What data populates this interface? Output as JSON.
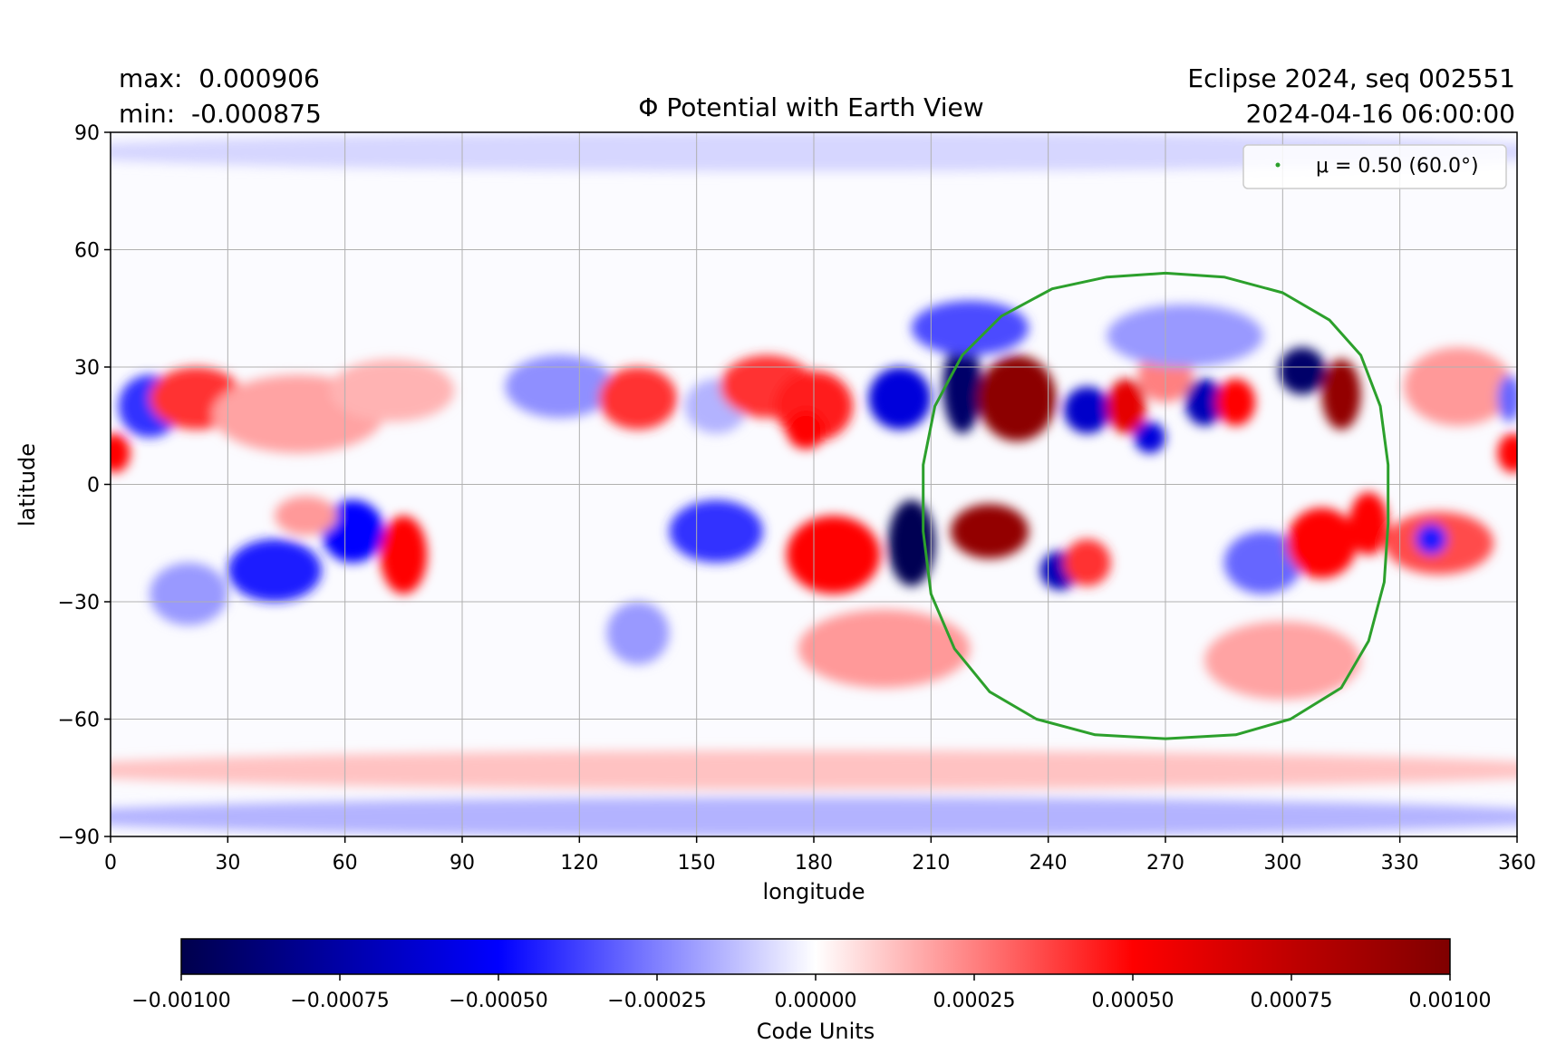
{
  "header": {
    "max_label": "max:",
    "max_value": "0.000906",
    "min_label": "min:",
    "min_value": "-0.000875",
    "source": "Eclipse 2024, seq 002551",
    "timestamp": "2024-04-16 06:00:00"
  },
  "chart_data": {
    "type": "heatmap",
    "title": "Φ Potential with Earth View",
    "xlabel": "longitude",
    "ylabel": "latitude",
    "xlim": [
      0,
      360
    ],
    "ylim": [
      -90,
      90
    ],
    "xticks": [
      0,
      30,
      60,
      90,
      120,
      150,
      180,
      210,
      240,
      270,
      300,
      330,
      360
    ],
    "yticks": [
      -90,
      -60,
      -30,
      0,
      30,
      60,
      90
    ],
    "ytick_labels": [
      "−90",
      "−60",
      "−30",
      "0",
      "30",
      "60",
      "90"
    ],
    "grid": true,
    "colormap": "seismic",
    "colormap_colors": [
      "#00004c",
      "#0000ff",
      "#ffffff",
      "#ff0000",
      "#7f0000"
    ],
    "colorbar": {
      "label": "Code Units",
      "range": [
        -0.001,
        0.001
      ],
      "ticks": [
        -0.001,
        -0.00075,
        -0.0005,
        -0.00025,
        0.0,
        0.00025,
        0.0005,
        0.00075,
        0.001
      ],
      "tick_labels": [
        "−0.00100",
        "−0.00075",
        "−0.00050",
        "−0.00025",
        "0.00000",
        "0.00025",
        "0.00050",
        "0.00075",
        "0.00100"
      ]
    },
    "legend": {
      "label": "μ = 0.50 (60.0°)",
      "position": "top-right",
      "color": "#2ca02c"
    },
    "disk_contour": {
      "name": "μ = 0.50 (60.0°)",
      "color": "#2ca02c",
      "points": [
        [
          270,
          54
        ],
        [
          285,
          53
        ],
        [
          300,
          49
        ],
        [
          312,
          42
        ],
        [
          320,
          33
        ],
        [
          325,
          20
        ],
        [
          327,
          5
        ],
        [
          327,
          -10
        ],
        [
          326,
          -25
        ],
        [
          322,
          -40
        ],
        [
          315,
          -52
        ],
        [
          302,
          -60
        ],
        [
          288,
          -64
        ],
        [
          270,
          -65
        ],
        [
          252,
          -64
        ],
        [
          237,
          -60
        ],
        [
          225,
          -53
        ],
        [
          216,
          -42
        ],
        [
          210,
          -28
        ],
        [
          208,
          -12
        ],
        [
          208,
          5
        ],
        [
          211,
          20
        ],
        [
          218,
          33
        ],
        [
          228,
          43
        ],
        [
          241,
          50
        ],
        [
          255,
          53
        ],
        [
          270,
          54
        ]
      ]
    },
    "features": [
      {
        "lon": 10,
        "lat": 20,
        "value": -0.0004,
        "rlon": 8,
        "rlat": 8
      },
      {
        "lon": 1,
        "lat": 8,
        "value": 0.0005,
        "rlon": 4,
        "rlat": 5
      },
      {
        "lon": 22,
        "lat": 22,
        "value": 0.0004,
        "rlon": 12,
        "rlat": 8
      },
      {
        "lon": 48,
        "lat": 18,
        "value": 0.00018,
        "rlon": 22,
        "rlat": 10
      },
      {
        "lon": 72,
        "lat": 24,
        "value": 0.00015,
        "rlon": 16,
        "rlat": 8
      },
      {
        "lon": 115,
        "lat": 25,
        "value": -0.00022,
        "rlon": 14,
        "rlat": 8
      },
      {
        "lon": 135,
        "lat": 22,
        "value": 0.0004,
        "rlon": 10,
        "rlat": 8
      },
      {
        "lon": 155,
        "lat": 20,
        "value": -0.00015,
        "rlon": 8,
        "rlat": 7
      },
      {
        "lon": 168,
        "lat": 25,
        "value": 0.0004,
        "rlon": 12,
        "rlat": 8
      },
      {
        "lon": 180,
        "lat": 20,
        "value": 0.00045,
        "rlon": 10,
        "rlat": 9
      },
      {
        "lon": 178,
        "lat": 14,
        "value": 0.0005,
        "rlon": 5,
        "rlat": 5
      },
      {
        "lon": 202,
        "lat": 22,
        "value": -0.0006,
        "rlon": 8,
        "rlat": 8
      },
      {
        "lon": 218,
        "lat": 25,
        "value": -0.00092,
        "rlon": 5,
        "rlat": 12
      },
      {
        "lon": 232,
        "lat": 22,
        "value": 0.00095,
        "rlon": 10,
        "rlat": 11
      },
      {
        "lon": 250,
        "lat": 19,
        "value": -0.00065,
        "rlon": 6,
        "rlat": 6
      },
      {
        "lon": 260,
        "lat": 20,
        "value": 0.0006,
        "rlon": 5,
        "rlat": 7
      },
      {
        "lon": 270,
        "lat": 28,
        "value": 0.00025,
        "rlon": 7,
        "rlat": 7
      },
      {
        "lon": 266,
        "lat": 12,
        "value": -0.0006,
        "rlon": 4,
        "rlat": 4
      },
      {
        "lon": 280,
        "lat": 21,
        "value": -0.0007,
        "rlon": 5,
        "rlat": 6
      },
      {
        "lon": 288,
        "lat": 21,
        "value": 0.0005,
        "rlon": 5,
        "rlat": 6
      },
      {
        "lon": 305,
        "lat": 29,
        "value": -0.00092,
        "rlon": 6,
        "rlat": 6
      },
      {
        "lon": 315,
        "lat": 23,
        "value": 0.00092,
        "rlon": 5,
        "rlat": 9
      },
      {
        "lon": 345,
        "lat": 25,
        "value": 0.0002,
        "rlon": 14,
        "rlat": 10
      },
      {
        "lon": 358,
        "lat": 22,
        "value": -0.0003,
        "rlon": 3,
        "rlat": 6
      },
      {
        "lon": 359,
        "lat": 8,
        "value": 0.0005,
        "rlon": 4,
        "rlat": 5
      },
      {
        "lon": 220,
        "lat": 40,
        "value": -0.00035,
        "rlon": 15,
        "rlat": 7
      },
      {
        "lon": 275,
        "lat": 38,
        "value": -0.0002,
        "rlon": 20,
        "rlat": 8
      },
      {
        "lon": 42,
        "lat": -22,
        "value": -0.00045,
        "rlon": 12,
        "rlat": 8
      },
      {
        "lon": 62,
        "lat": -12,
        "value": -0.0005,
        "rlon": 8,
        "rlat": 8
      },
      {
        "lon": 75,
        "lat": -18,
        "value": 0.0005,
        "rlon": 6,
        "rlat": 10
      },
      {
        "lon": 20,
        "lat": -28,
        "value": -0.0002,
        "rlon": 10,
        "rlat": 8
      },
      {
        "lon": 50,
        "lat": -8,
        "value": 0.0002,
        "rlon": 8,
        "rlat": 5
      },
      {
        "lon": 155,
        "lat": -12,
        "value": -0.0004,
        "rlon": 12,
        "rlat": 8
      },
      {
        "lon": 135,
        "lat": -38,
        "value": -0.0002,
        "rlon": 8,
        "rlat": 8
      },
      {
        "lon": 185,
        "lat": -18,
        "value": 0.0005,
        "rlon": 12,
        "rlat": 10
      },
      {
        "lon": 205,
        "lat": -15,
        "value": -0.00098,
        "rlon": 6,
        "rlat": 11
      },
      {
        "lon": 225,
        "lat": -12,
        "value": 0.00092,
        "rlon": 10,
        "rlat": 7
      },
      {
        "lon": 243,
        "lat": -22,
        "value": -0.0007,
        "rlon": 5,
        "rlat": 5
      },
      {
        "lon": 250,
        "lat": -20,
        "value": 0.0004,
        "rlon": 6,
        "rlat": 6
      },
      {
        "lon": 198,
        "lat": -42,
        "value": 0.0002,
        "rlon": 22,
        "rlat": 10
      },
      {
        "lon": 295,
        "lat": -20,
        "value": -0.0003,
        "rlon": 10,
        "rlat": 8
      },
      {
        "lon": 310,
        "lat": -15,
        "value": 0.0005,
        "rlon": 9,
        "rlat": 9
      },
      {
        "lon": 322,
        "lat": -10,
        "value": 0.0005,
        "rlon": 5,
        "rlat": 8
      },
      {
        "lon": 340,
        "lat": -15,
        "value": 0.00035,
        "rlon": 14,
        "rlat": 8
      },
      {
        "lon": 338,
        "lat": -14,
        "value": -0.00045,
        "rlon": 4,
        "rlat": 4
      },
      {
        "lon": 300,
        "lat": -45,
        "value": 0.00018,
        "rlon": 20,
        "rlat": 10
      },
      {
        "lon": 180,
        "lat": -85,
        "value": -0.00015,
        "rlon": 200,
        "rlat": 5
      },
      {
        "lon": 180,
        "lat": -73,
        "value": 0.00012,
        "rlon": 200,
        "rlat": 5
      },
      {
        "lon": 180,
        "lat": 85,
        "value": -8e-05,
        "rlon": 200,
        "rlat": 5
      }
    ]
  }
}
